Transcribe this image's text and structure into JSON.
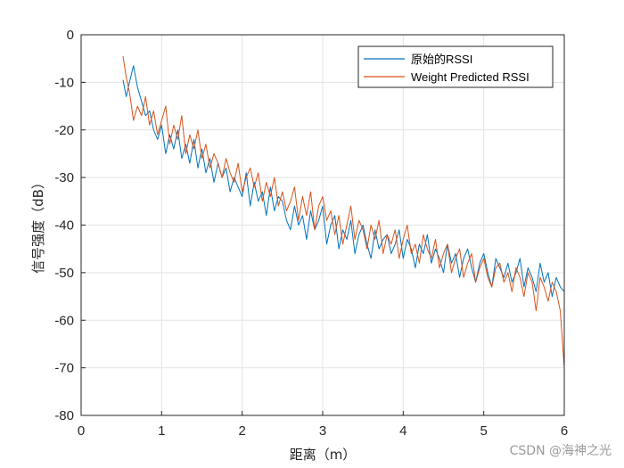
{
  "chart_data": {
    "type": "line",
    "title": "",
    "xlabel": "距离（m）",
    "ylabel": "信号强度（dB）",
    "xlim": [
      0,
      6
    ],
    "ylim": [
      -80,
      0
    ],
    "x_ticks": [
      0,
      1,
      2,
      3,
      4,
      5,
      6
    ],
    "y_ticks": [
      0,
      -10,
      -20,
      -30,
      -40,
      -50,
      -60,
      -70,
      -80
    ],
    "grid": true,
    "legend_position": "top-right",
    "series": [
      {
        "name": "原始的RSSI",
        "color": "#0072bd",
        "x": [
          0.52,
          0.56,
          0.6,
          0.65,
          0.7,
          0.75,
          0.8,
          0.85,
          0.9,
          0.95,
          1.0,
          1.05,
          1.1,
          1.15,
          1.2,
          1.25,
          1.3,
          1.35,
          1.4,
          1.45,
          1.5,
          1.55,
          1.6,
          1.65,
          1.7,
          1.75,
          1.8,
          1.85,
          1.9,
          1.95,
          2.0,
          2.05,
          2.1,
          2.15,
          2.2,
          2.25,
          2.3,
          2.35,
          2.4,
          2.45,
          2.5,
          2.55,
          2.6,
          2.65,
          2.7,
          2.75,
          2.8,
          2.85,
          2.9,
          2.95,
          3.0,
          3.05,
          3.1,
          3.15,
          3.2,
          3.25,
          3.3,
          3.35,
          3.4,
          3.45,
          3.5,
          3.55,
          3.6,
          3.65,
          3.7,
          3.75,
          3.8,
          3.85,
          3.9,
          3.95,
          4.0,
          4.05,
          4.1,
          4.15,
          4.2,
          4.25,
          4.3,
          4.35,
          4.4,
          4.45,
          4.5,
          4.55,
          4.6,
          4.65,
          4.7,
          4.75,
          4.8,
          4.85,
          4.9,
          4.95,
          5.0,
          5.05,
          5.1,
          5.15,
          5.2,
          5.25,
          5.3,
          5.35,
          5.4,
          5.45,
          5.5,
          5.55,
          5.6,
          5.65,
          5.7,
          5.75,
          5.8,
          5.85,
          5.9,
          5.95,
          6.0
        ],
        "values": [
          -9.5,
          -13,
          -10,
          -6.5,
          -11,
          -14,
          -17,
          -16,
          -20,
          -22,
          -19,
          -25,
          -21,
          -24,
          -20,
          -26,
          -23,
          -27,
          -22,
          -28,
          -24,
          -29,
          -26,
          -31,
          -27,
          -30,
          -28,
          -33,
          -30,
          -32,
          -34,
          -29,
          -36,
          -31,
          -35,
          -33,
          -38,
          -32,
          -37,
          -34,
          -35,
          -39,
          -41,
          -36,
          -40,
          -38,
          -43,
          -37,
          -41,
          -39,
          -36,
          -44,
          -40,
          -38,
          -45,
          -41,
          -43,
          -39,
          -46,
          -42,
          -40,
          -44,
          -47,
          -41,
          -45,
          -43,
          -42,
          -46,
          -44,
          -41,
          -47,
          -43,
          -45,
          -49,
          -44,
          -46,
          -42,
          -48,
          -45,
          -47,
          -50,
          -44,
          -48,
          -46,
          -51,
          -47,
          -45,
          -49,
          -52,
          -48,
          -46,
          -50,
          -53,
          -47,
          -49,
          -51,
          -48,
          -52,
          -50,
          -47,
          -53,
          -49,
          -51,
          -54,
          -48,
          -52,
          -50,
          -55,
          -51,
          -53,
          -54
        ]
      },
      {
        "name": "Weight Predicted RSSI",
        "color": "#d95319",
        "x": [
          0.52,
          0.56,
          0.6,
          0.65,
          0.7,
          0.75,
          0.8,
          0.85,
          0.9,
          0.95,
          1.0,
          1.05,
          1.1,
          1.15,
          1.2,
          1.25,
          1.3,
          1.35,
          1.4,
          1.45,
          1.5,
          1.55,
          1.6,
          1.65,
          1.7,
          1.75,
          1.8,
          1.85,
          1.9,
          1.95,
          2.0,
          2.05,
          2.1,
          2.15,
          2.2,
          2.25,
          2.3,
          2.35,
          2.4,
          2.45,
          2.5,
          2.55,
          2.6,
          2.65,
          2.7,
          2.75,
          2.8,
          2.85,
          2.9,
          2.95,
          3.0,
          3.05,
          3.1,
          3.15,
          3.2,
          3.25,
          3.3,
          3.35,
          3.4,
          3.45,
          3.5,
          3.55,
          3.6,
          3.65,
          3.7,
          3.75,
          3.8,
          3.85,
          3.9,
          3.95,
          4.0,
          4.05,
          4.1,
          4.15,
          4.2,
          4.25,
          4.3,
          4.35,
          4.4,
          4.45,
          4.5,
          4.55,
          4.6,
          4.65,
          4.7,
          4.75,
          4.8,
          4.85,
          4.9,
          4.95,
          5.0,
          5.05,
          5.1,
          5.15,
          5.2,
          5.25,
          5.3,
          5.35,
          5.4,
          5.45,
          5.5,
          5.55,
          5.6,
          5.65,
          5.7,
          5.75,
          5.8,
          5.85,
          5.9,
          5.95,
          6.0
        ],
        "values": [
          -4.5,
          -9,
          -12,
          -18,
          -15,
          -17,
          -13,
          -19,
          -16,
          -21,
          -18,
          -15,
          -23,
          -19,
          -22,
          -17,
          -25,
          -21,
          -24,
          -20,
          -26,
          -23,
          -28,
          -25,
          -27,
          -30,
          -26,
          -29,
          -31,
          -27,
          -33,
          -30,
          -28,
          -32,
          -29,
          -35,
          -31,
          -34,
          -30,
          -36,
          -33,
          -37,
          -35,
          -32,
          -39,
          -34,
          -38,
          -33,
          -41,
          -36,
          -34,
          -39,
          -37,
          -42,
          -38,
          -44,
          -40,
          -36,
          -43,
          -39,
          -41,
          -45,
          -40,
          -43,
          -39,
          -46,
          -42,
          -44,
          -41,
          -47,
          -43,
          -40,
          -46,
          -44,
          -48,
          -42,
          -45,
          -47,
          -43,
          -49,
          -46,
          -44,
          -50,
          -47,
          -45,
          -51,
          -48,
          -46,
          -52,
          -49,
          -47,
          -51,
          -53,
          -49,
          -48,
          -52,
          -50,
          -54,
          -49,
          -51,
          -55,
          -50,
          -52,
          -58,
          -51,
          -53,
          -56,
          -52,
          -54,
          -58,
          -70
        ]
      }
    ]
  },
  "watermark": "CSDN @海神之光"
}
